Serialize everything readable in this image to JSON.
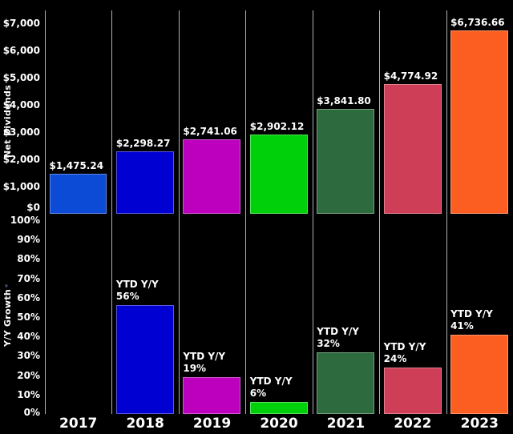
{
  "figure": {
    "background": "#000000",
    "grid_color": "#aeb0b2",
    "text_color": "#ffffff",
    "bar_border": "rgba(255,255,255,0.35)",
    "footnote_marker": "*",
    "footnote_color": "#5b6e96"
  },
  "chart_data": [
    {
      "type": "bar",
      "panel": "net-dividends",
      "ylabel": "Net Dividends",
      "categories": [
        "2017",
        "2018",
        "2019",
        "2020",
        "2021",
        "2022",
        "2023"
      ],
      "values": [
        1475.24,
        2298.27,
        2741.06,
        2902.12,
        3841.8,
        4774.92,
        6736.66
      ],
      "value_labels": [
        "$1,475.24",
        "$2,298.27",
        "$2,741.06",
        "$2,902.12",
        "$3,841.80",
        "$4,774.92",
        "$6,736.66"
      ],
      "colors": [
        "#0b4bd6",
        "#0000d2",
        "#bd00bd",
        "#00d00a",
        "#2d6a3e",
        "#ce3e57",
        "#fc5e22"
      ],
      "ylim": [
        0,
        7470
      ],
      "yticks": [
        7000,
        6000,
        5000,
        4000,
        3000,
        2000,
        1000,
        0
      ],
      "ytick_labels": [
        "$7,000",
        "$6,000",
        "$5,000",
        "$4,000",
        "$3,000",
        "$2,000",
        "$1,000",
        "$0"
      ],
      "grid": "vertical-only",
      "legend": "none"
    },
    {
      "type": "bar",
      "panel": "yy-growth",
      "ylabel": "Y/Y Growth",
      "value_label_prefix": "YTD Y/Y",
      "categories": [
        "2017",
        "2018",
        "2019",
        "2020",
        "2021",
        "2022",
        "2023"
      ],
      "values": [
        null,
        56,
        19,
        6,
        32,
        24,
        41
      ],
      "value_labels": [
        null,
        "56%",
        "19%",
        "6%",
        "32%",
        "24%",
        "41%"
      ],
      "colors": [
        "#0b4bd6",
        "#0000d2",
        "#bd00bd",
        "#00d00a",
        "#2d6a3e",
        "#ce3e57",
        "#fc5e22"
      ],
      "ylim": [
        0,
        100
      ],
      "yticks": [
        100,
        90,
        80,
        70,
        60,
        50,
        40,
        30,
        20,
        10,
        0
      ],
      "ytick_labels": [
        "100%",
        "90%",
        "80%",
        "70%",
        "60%",
        "50%",
        "40%",
        "30%",
        "20%",
        "10%",
        "0%"
      ],
      "grid": "vertical-only",
      "legend": "none"
    }
  ]
}
